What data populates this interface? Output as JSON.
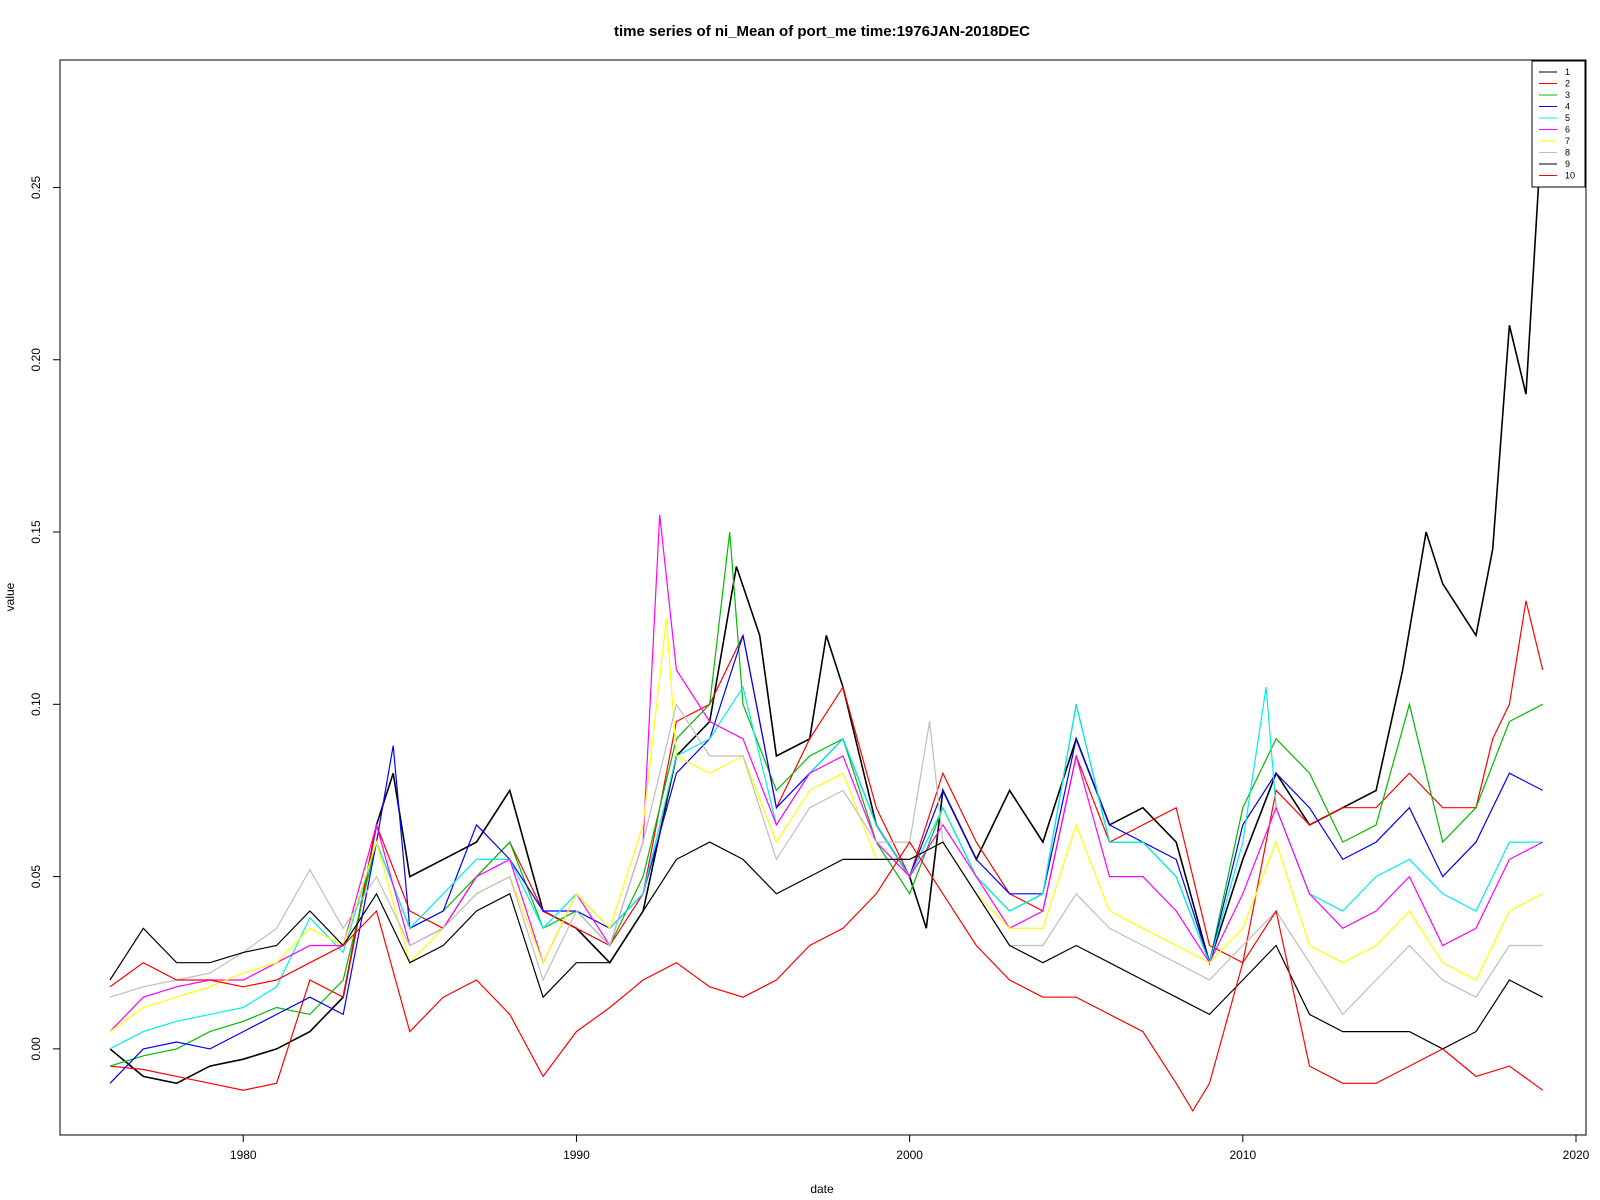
{
  "chart_data": {
    "type": "line",
    "title": "time series of ni_Mean of port_me time:1976JAN-2018DEC",
    "xlabel": "date",
    "ylabel": "value",
    "xlim": [
      1974.5,
      2020.3
    ],
    "ylim": [
      -0.025,
      0.287
    ],
    "x_ticks": [
      1980,
      1990,
      2000,
      2010,
      2020
    ],
    "y_ticks": [
      0.0,
      0.05,
      0.1,
      0.15,
      0.2,
      0.25
    ],
    "y_tick_labels": [
      "0.00",
      "0.05",
      "0.10",
      "0.15",
      "0.20",
      "0.25"
    ],
    "legend_position": "top-right",
    "grid": false,
    "series": [
      {
        "name": "1",
        "color": "#000000",
        "x": [
          1976,
          1977,
          1978,
          1979,
          1980,
          1981,
          1982,
          1983,
          1984,
          1984.5,
          1985,
          1986,
          1987,
          1988,
          1989,
          1990,
          1991,
          1992,
          1993,
          1994,
          1994.8,
          1995.5,
          1996,
          1997,
          1997.5,
          1998,
          1999,
          2000,
          2000.5,
          2001,
          2002,
          2003,
          2004,
          2005,
          2006,
          2007,
          2008,
          2009,
          2010,
          2011,
          2012,
          2013,
          2014,
          2014.8,
          2015.5,
          2016,
          2017,
          2017.5,
          2018,
          2018.5,
          2018.9,
          2019
        ],
        "y": [
          0.0,
          -0.008,
          -0.01,
          -0.005,
          -0.003,
          0.0,
          0.005,
          0.015,
          0.065,
          0.08,
          0.05,
          0.055,
          0.06,
          0.075,
          0.04,
          0.035,
          0.025,
          0.04,
          0.085,
          0.095,
          0.14,
          0.12,
          0.085,
          0.09,
          0.12,
          0.105,
          0.065,
          0.05,
          0.035,
          0.075,
          0.055,
          0.075,
          0.06,
          0.09,
          0.065,
          0.07,
          0.06,
          0.025,
          0.055,
          0.08,
          0.065,
          0.07,
          0.075,
          0.11,
          0.15,
          0.135,
          0.12,
          0.145,
          0.21,
          0.19,
          0.255,
          0.275
        ]
      },
      {
        "name": "2",
        "color": "#ff0000",
        "x": [
          1976,
          1977,
          1978,
          1979,
          1980,
          1981,
          1982,
          1983,
          1984,
          1985,
          1986,
          1987,
          1988,
          1989,
          1990,
          1991,
          1992,
          1993,
          1994,
          1995,
          1996,
          1997,
          1998,
          1999,
          2000,
          2001,
          2002,
          2003,
          2004,
          2005,
          2006,
          2007,
          2008,
          2009,
          2010,
          2011,
          2012,
          2013,
          2014,
          2015,
          2016,
          2017,
          2017.5,
          2018,
          2018.5,
          2019
        ],
        "y": [
          -0.005,
          -0.006,
          -0.008,
          -0.01,
          -0.012,
          -0.01,
          0.02,
          0.015,
          0.065,
          0.04,
          0.035,
          0.05,
          0.06,
          0.04,
          0.035,
          0.03,
          0.045,
          0.095,
          0.1,
          0.12,
          0.07,
          0.09,
          0.105,
          0.07,
          0.05,
          0.08,
          0.06,
          0.045,
          0.04,
          0.085,
          0.06,
          0.065,
          0.07,
          0.03,
          0.025,
          0.075,
          0.065,
          0.07,
          0.07,
          0.08,
          0.07,
          0.07,
          0.09,
          0.1,
          0.13,
          0.11
        ]
      },
      {
        "name": "3",
        "color": "#00bb00",
        "x": [
          1976,
          1977,
          1978,
          1979,
          1980,
          1981,
          1982,
          1983,
          1984,
          1985,
          1986,
          1987,
          1988,
          1989,
          1990,
          1991,
          1992,
          1993,
          1994,
          1994.6,
          1995,
          1996,
          1997,
          1998,
          1999,
          2000,
          2001,
          2002,
          2003,
          2004,
          2005,
          2006,
          2007,
          2008,
          2009,
          2010,
          2011,
          2012,
          2013,
          2014,
          2015,
          2016,
          2017,
          2018,
          2019
        ],
        "y": [
          -0.005,
          -0.002,
          0.0,
          0.005,
          0.008,
          0.012,
          0.01,
          0.02,
          0.06,
          0.035,
          0.04,
          0.05,
          0.06,
          0.035,
          0.04,
          0.03,
          0.05,
          0.09,
          0.1,
          0.15,
          0.1,
          0.075,
          0.085,
          0.09,
          0.06,
          0.045,
          0.07,
          0.05,
          0.04,
          0.045,
          0.1,
          0.06,
          0.06,
          0.05,
          0.025,
          0.07,
          0.09,
          0.08,
          0.06,
          0.065,
          0.1,
          0.06,
          0.07,
          0.095,
          0.1
        ]
      },
      {
        "name": "4",
        "color": "#0000ff",
        "x": [
          1976,
          1977,
          1978,
          1979,
          1980,
          1981,
          1982,
          1983,
          1984,
          1984.5,
          1985,
          1986,
          1987,
          1988,
          1989,
          1990,
          1991,
          1992,
          1993,
          1994,
          1995,
          1996,
          1997,
          1998,
          1999,
          2000,
          2001,
          2002,
          2003,
          2004,
          2005,
          2006,
          2007,
          2008,
          2009,
          2010,
          2011,
          2012,
          2013,
          2014,
          2015,
          2016,
          2017,
          2018,
          2019
        ],
        "y": [
          -0.01,
          0.0,
          0.002,
          0.0,
          0.005,
          0.01,
          0.015,
          0.01,
          0.06,
          0.088,
          0.035,
          0.04,
          0.065,
          0.055,
          0.04,
          0.04,
          0.035,
          0.045,
          0.08,
          0.09,
          0.12,
          0.07,
          0.08,
          0.09,
          0.065,
          0.05,
          0.075,
          0.055,
          0.045,
          0.045,
          0.09,
          0.065,
          0.06,
          0.055,
          0.025,
          0.065,
          0.08,
          0.07,
          0.055,
          0.06,
          0.07,
          0.05,
          0.06,
          0.08,
          0.075
        ]
      },
      {
        "name": "5",
        "color": "#00eeee",
        "x": [
          1976,
          1977,
          1978,
          1979,
          1980,
          1981,
          1982,
          1983,
          1984,
          1985,
          1986,
          1987,
          1988,
          1989,
          1990,
          1991,
          1992,
          1993,
          1994,
          1995,
          1996,
          1997,
          1998,
          1999,
          2000,
          2001,
          2002,
          2003,
          2004,
          2005,
          2006,
          2007,
          2008,
          2009,
          2010,
          2010.7,
          2011,
          2012,
          2013,
          2014,
          2015,
          2016,
          2017,
          2018,
          2019
        ],
        "y": [
          0.0,
          0.005,
          0.008,
          0.01,
          0.012,
          0.018,
          0.038,
          0.028,
          0.06,
          0.035,
          0.045,
          0.055,
          0.055,
          0.035,
          0.045,
          0.035,
          0.045,
          0.085,
          0.09,
          0.105,
          0.065,
          0.08,
          0.09,
          0.065,
          0.05,
          0.07,
          0.05,
          0.04,
          0.045,
          0.1,
          0.06,
          0.06,
          0.05,
          0.025,
          0.06,
          0.105,
          0.07,
          0.045,
          0.04,
          0.05,
          0.055,
          0.045,
          0.04,
          0.06,
          0.06
        ]
      },
      {
        "name": "6",
        "color": "#ff00ff",
        "x": [
          1976,
          1977,
          1978,
          1979,
          1980,
          1981,
          1982,
          1983,
          1984,
          1985,
          1986,
          1987,
          1988,
          1989,
          1990,
          1991,
          1992,
          1992.5,
          1993,
          1994,
          1995,
          1996,
          1997,
          1998,
          1999,
          2000,
          2001,
          2002,
          2003,
          2004,
          2005,
          2006,
          2007,
          2008,
          2009,
          2010,
          2011,
          2012,
          2013,
          2014,
          2015,
          2016,
          2017,
          2018,
          2019
        ],
        "y": [
          0.005,
          0.015,
          0.018,
          0.02,
          0.02,
          0.025,
          0.03,
          0.03,
          0.065,
          0.03,
          0.035,
          0.05,
          0.055,
          0.025,
          0.045,
          0.03,
          0.06,
          0.155,
          0.11,
          0.095,
          0.09,
          0.065,
          0.08,
          0.085,
          0.06,
          0.05,
          0.065,
          0.05,
          0.035,
          0.04,
          0.085,
          0.05,
          0.05,
          0.04,
          0.025,
          0.045,
          0.07,
          0.045,
          0.035,
          0.04,
          0.05,
          0.03,
          0.035,
          0.055,
          0.06
        ]
      },
      {
        "name": "7",
        "color": "#ffff00",
        "x": [
          1976,
          1977,
          1978,
          1979,
          1980,
          1981,
          1982,
          1983,
          1984,
          1985,
          1986,
          1987,
          1988,
          1989,
          1990,
          1991,
          1992,
          1992.7,
          1993,
          1994,
          1995,
          1996,
          1997,
          1998,
          1999,
          2000,
          2001,
          2002,
          2003,
          2004,
          2005,
          2006,
          2007,
          2008,
          2009,
          2010,
          2011,
          2012,
          2013,
          2014,
          2015,
          2016,
          2017,
          2018,
          2019
        ],
        "y": [
          0.005,
          0.012,
          0.015,
          0.018,
          0.022,
          0.025,
          0.035,
          0.03,
          0.06,
          0.025,
          0.035,
          0.045,
          0.05,
          0.025,
          0.045,
          0.035,
          0.065,
          0.125,
          0.085,
          0.08,
          0.085,
          0.06,
          0.075,
          0.08,
          0.055,
          0.055,
          0.06,
          0.045,
          0.035,
          0.035,
          0.065,
          0.04,
          0.035,
          0.03,
          0.025,
          0.035,
          0.06,
          0.03,
          0.025,
          0.03,
          0.04,
          0.025,
          0.02,
          0.04,
          0.045
        ]
      },
      {
        "name": "8",
        "color": "#bebebe",
        "x": [
          1976,
          1977,
          1978,
          1979,
          1980,
          1981,
          1982,
          1983,
          1984,
          1985,
          1986,
          1987,
          1988,
          1989,
          1990,
          1991,
          1992,
          1993,
          1994,
          1995,
          1996,
          1997,
          1998,
          1999,
          2000,
          2000.6,
          2001,
          2002,
          2003,
          2004,
          2005,
          2006,
          2007,
          2008,
          2009,
          2010,
          2011,
          2012,
          2013,
          2014,
          2015,
          2016,
          2017,
          2018,
          2019
        ],
        "y": [
          0.015,
          0.018,
          0.02,
          0.022,
          0.028,
          0.035,
          0.052,
          0.035,
          0.05,
          0.03,
          0.035,
          0.045,
          0.05,
          0.02,
          0.04,
          0.03,
          0.06,
          0.1,
          0.085,
          0.085,
          0.055,
          0.07,
          0.075,
          0.06,
          0.06,
          0.095,
          0.06,
          0.045,
          0.03,
          0.03,
          0.045,
          0.035,
          0.03,
          0.025,
          0.02,
          0.03,
          0.04,
          0.025,
          0.01,
          0.02,
          0.03,
          0.02,
          0.015,
          0.03,
          0.03
        ]
      },
      {
        "name": "9",
        "color": "#000000",
        "x": [
          1976,
          1977,
          1978,
          1979,
          1980,
          1981,
          1982,
          1983,
          1984,
          1985,
          1986,
          1987,
          1988,
          1989,
          1990,
          1991,
          1992,
          1993,
          1994,
          1995,
          1996,
          1997,
          1998,
          1999,
          2000,
          2001,
          2002,
          2003,
          2004,
          2005,
          2006,
          2007,
          2008,
          2009,
          2010,
          2011,
          2012,
          2013,
          2014,
          2015,
          2016,
          2017,
          2018,
          2019
        ],
        "y": [
          0.02,
          0.035,
          0.025,
          0.025,
          0.028,
          0.03,
          0.04,
          0.03,
          0.045,
          0.025,
          0.03,
          0.04,
          0.045,
          0.015,
          0.025,
          0.025,
          0.04,
          0.055,
          0.06,
          0.055,
          0.045,
          0.05,
          0.055,
          0.055,
          0.055,
          0.06,
          0.045,
          0.03,
          0.025,
          0.03,
          0.025,
          0.02,
          0.015,
          0.01,
          0.02,
          0.03,
          0.01,
          0.005,
          0.005,
          0.005,
          0.0,
          0.005,
          0.02,
          0.015
        ]
      },
      {
        "name": "10",
        "color": "#ff0000",
        "x": [
          1976,
          1977,
          1978,
          1979,
          1980,
          1981,
          1982,
          1983,
          1984,
          1985,
          1986,
          1987,
          1988,
          1989,
          1990,
          1991,
          1992,
          1993,
          1994,
          1995,
          1996,
          1997,
          1998,
          1999,
          2000,
          2001,
          2002,
          2003,
          2004,
          2005,
          2006,
          2007,
          2008,
          2008.5,
          2009,
          2010,
          2011,
          2012,
          2013,
          2014,
          2015,
          2016,
          2017,
          2018,
          2019
        ],
        "y": [
          0.018,
          0.025,
          0.02,
          0.02,
          0.018,
          0.02,
          0.025,
          0.03,
          0.04,
          0.005,
          0.015,
          0.02,
          0.01,
          -0.008,
          0.005,
          0.012,
          0.02,
          0.025,
          0.018,
          0.015,
          0.02,
          0.03,
          0.035,
          0.045,
          0.06,
          0.045,
          0.03,
          0.02,
          0.015,
          0.015,
          0.01,
          0.005,
          -0.01,
          -0.018,
          -0.01,
          0.025,
          0.04,
          -0.005,
          -0.01,
          -0.01,
          -0.005,
          0.0,
          -0.008,
          -0.005,
          -0.012
        ]
      }
    ]
  }
}
